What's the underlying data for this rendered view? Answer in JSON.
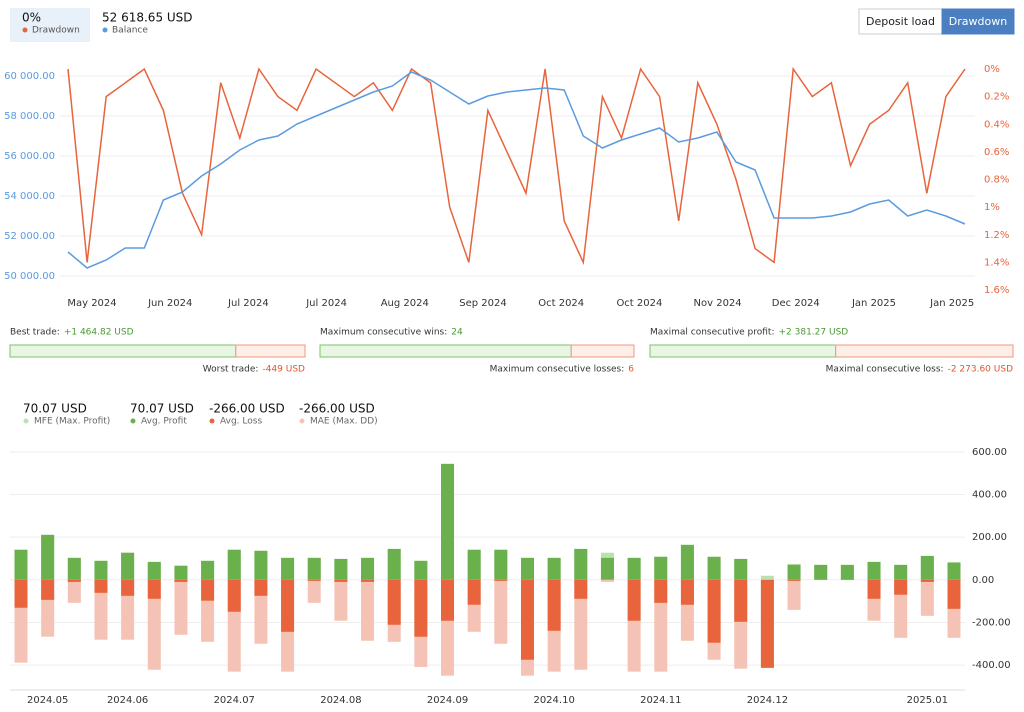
{
  "header": {
    "buttons": [
      {
        "label": "Deposit load",
        "active": false
      },
      {
        "label": "Drawdown",
        "active": true
      }
    ]
  },
  "chart_data": [
    {
      "type": "line",
      "x_labels": [
        "May 2024",
        "Jun 2024",
        "Jul 2024",
        "Jul 2024",
        "Aug 2024",
        "Sep 2024",
        "Oct 2024",
        "Oct 2024",
        "Nov 2024",
        "Dec 2024",
        "Jan 2025",
        "Jan 2025"
      ],
      "ylim": [
        49300,
        60350
      ],
      "yticks": [
        {
          "value": 50000,
          "label": "50 000.00"
        },
        {
          "value": 52000,
          "label": "52 000.00"
        },
        {
          "value": 54000,
          "label": "54 000.00"
        },
        {
          "value": 56000,
          "label": "56 000.00"
        },
        {
          "value": 58000,
          "label": "58 000.00"
        },
        {
          "value": 60000,
          "label": "60 000.00"
        }
      ],
      "y2lim": [
        0,
        1.6
      ],
      "y2_inverted": true,
      "y2ticks": [
        {
          "value": 0,
          "label": "0%"
        },
        {
          "value": 0.2,
          "label": "0.2%"
        },
        {
          "value": 0.4,
          "label": "0.4%"
        },
        {
          "value": 0.6,
          "label": "0.6%"
        },
        {
          "value": 0.8,
          "label": "0.8%"
        },
        {
          "value": 1,
          "label": "1%"
        },
        {
          "value": 1.2,
          "label": "1.2%"
        },
        {
          "value": 1.4,
          "label": "1.4%"
        },
        {
          "value": 1.6,
          "label": "1.6%"
        }
      ],
      "grid": true,
      "series": [
        {
          "name": "Drawdown",
          "current": "0%",
          "color": "#e8643c",
          "axis": "y2",
          "values": [
            0,
            1.4,
            0.2,
            0.1,
            0,
            0.3,
            0.9,
            1.2,
            0.1,
            0.5,
            0,
            0.2,
            0.3,
            0,
            0.1,
            0.2,
            0.1,
            0.3,
            0,
            0.1,
            1.0,
            1.4,
            0.3,
            0.6,
            0.9,
            0,
            1.1,
            1.4,
            0.2,
            0.5,
            0,
            0.2,
            1.1,
            0.1,
            0.4,
            0.8,
            1.3,
            1.4,
            0,
            0.2,
            0.1,
            0.7,
            0.4,
            0.3,
            0.1,
            0.9,
            0.2,
            0
          ]
        },
        {
          "name": "Balance",
          "current": "52 618.65 USD",
          "color": "#5b9be0",
          "values": [
            51200,
            50400,
            50800,
            51400,
            51400,
            53800,
            54200,
            55000,
            55600,
            56300,
            56800,
            57000,
            57600,
            58000,
            58400,
            58800,
            59200,
            59500,
            60200,
            59800,
            59200,
            58600,
            59000,
            59200,
            59300,
            59400,
            59300,
            57000,
            56400,
            56800,
            57100,
            57400,
            56700,
            56900,
            57200,
            55700,
            55300,
            52900,
            52900,
            52900,
            53000,
            53200,
            53600,
            53800,
            53000,
            53300,
            53000,
            52600
          ]
        }
      ]
    },
    {
      "type": "bar",
      "categories": [
        null,
        "2024.05",
        null,
        null,
        "2024.06",
        null,
        null,
        null,
        "2024.07",
        null,
        null,
        null,
        "2024.08",
        null,
        null,
        null,
        "2024.09",
        null,
        null,
        null,
        "2024.10",
        null,
        null,
        null,
        "2024.11",
        null,
        null,
        null,
        "2024.12",
        null,
        null,
        null,
        null,
        null,
        "2025.01",
        null
      ],
      "ylim": [
        -517,
        656
      ],
      "yticks": [
        {
          "value": -400,
          "label": "-400.00"
        },
        {
          "value": -200,
          "label": "-200.00"
        },
        {
          "value": 0,
          "label": "0.00"
        },
        {
          "value": 200,
          "label": "200.00"
        },
        {
          "value": 400,
          "label": "400.00"
        },
        {
          "value": 600,
          "label": "600.00"
        }
      ],
      "grid": true,
      "series": [
        {
          "name": "MFE (Max. Profit)",
          "summary": "70.07 USD",
          "color": "#bde0b0",
          "values": [
            141,
            211,
            103,
            89,
            127,
            84,
            66,
            89,
            141,
            136,
            103,
            103,
            98,
            103,
            145,
            89,
            544,
            141,
            141,
            103,
            103,
            145,
            127,
            103,
            108,
            164,
            108,
            98,
            19,
            75,
            70,
            70,
            84,
            70,
            112,
            84
          ]
        },
        {
          "name": "Avg. Profit",
          "summary": "70.07 USD",
          "color": "#6ab04c",
          "values": [
            141,
            211,
            103,
            89,
            127,
            84,
            66,
            89,
            141,
            136,
            103,
            103,
            98,
            103,
            145,
            89,
            544,
            141,
            141,
            103,
            103,
            145,
            103,
            103,
            108,
            164,
            108,
            98,
            0,
            70,
            70,
            70,
            84,
            70,
            112,
            80
          ]
        },
        {
          "name": "MAE (Max. DD)",
          "summary": "-266.00 USD",
          "color": "#f5c3b5",
          "values": [
            -389,
            -267,
            -108,
            -281,
            -281,
            -422,
            -258,
            -291,
            -431,
            -300,
            -431,
            -108,
            -192,
            -286,
            -291,
            -409,
            -450,
            -244,
            -300,
            -450,
            -431,
            -422,
            -10,
            -431,
            -431,
            -286,
            -375,
            -417,
            -413,
            -141,
            0,
            0,
            -192,
            -272,
            -169,
            -272
          ]
        },
        {
          "name": "Avg. Loss",
          "summary": "-266.00 USD",
          "color": "#e8643c",
          "values": [
            -131,
            -94,
            -10,
            -61,
            -75,
            -89,
            -10,
            -98,
            -150,
            -75,
            -244,
            -5,
            -10,
            -10,
            -211,
            -267,
            -192,
            -117,
            -5,
            -375,
            -239,
            -89,
            0,
            -192,
            -108,
            -117,
            -295,
            -197,
            -413,
            -5,
            0,
            0,
            -89,
            -70,
            -10,
            -136
          ]
        }
      ]
    }
  ],
  "stats": [
    {
      "label": "Best trade:",
      "value": 1464.82,
      "value_label": "+1 464.82 USD",
      "counter_label": "Worst trade:",
      "counter_value": -449,
      "counter_value_label": "-449 USD"
    },
    {
      "label": "Maximum consecutive wins:",
      "value": 24,
      "value_label": "24",
      "counter_label": "Maximum consecutive losses:",
      "counter_value": 6,
      "counter_value_label": "6"
    },
    {
      "label": "Maximal consecutive profit:",
      "value": 2381.27,
      "value_label": "+2 381.27 USD",
      "counter_label": "Maximal consecutive loss:",
      "counter_value": -2273.6,
      "counter_value_label": "-2 273.60 USD"
    }
  ]
}
